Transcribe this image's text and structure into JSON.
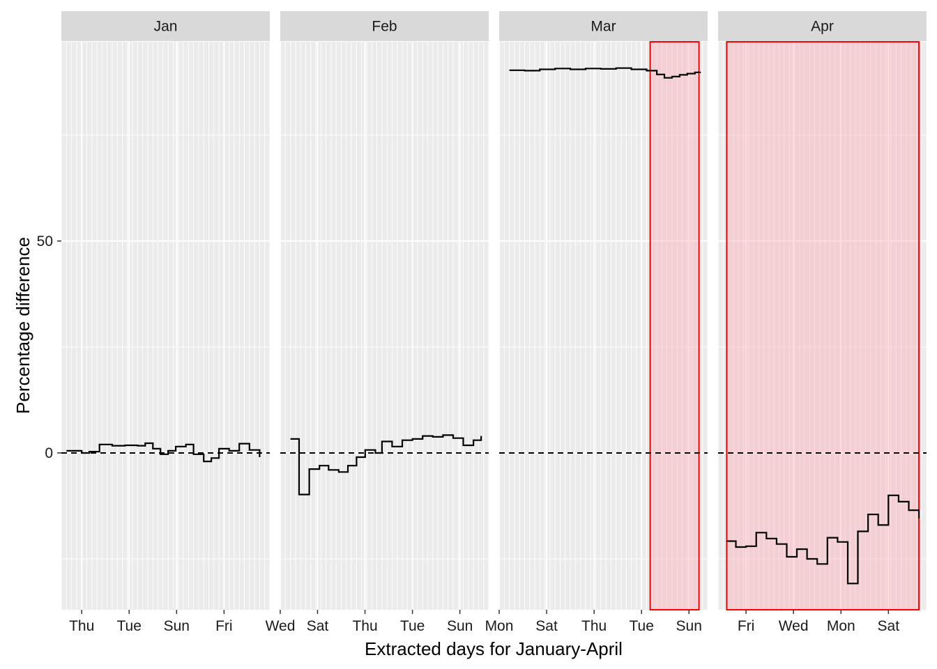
{
  "chart_data": {
    "type": "line",
    "step": true,
    "xlabel": "Extracted days for January-April",
    "ylabel": "Percentage difference",
    "ylim": [
      -37,
      97
    ],
    "y_major_ticks": [
      0,
      50
    ],
    "y_minor_ticks": [
      -25,
      25,
      75
    ],
    "reference_line": {
      "y": 0,
      "style": "dashed",
      "color": "#000000"
    },
    "grid": true,
    "panels": [
      {
        "name": "Jan",
        "x_domain": [
          0,
          41
        ],
        "x_ticks": [
          {
            "x": 4,
            "label": "Thu"
          },
          {
            "x": 13.33,
            "label": "Tue"
          },
          {
            "x": 22.67,
            "label": "Sun"
          },
          {
            "x": 32,
            "label": "Fri"
          }
        ],
        "highlight": null,
        "series": [
          {
            "x": 1,
            "y": 0.5
          },
          {
            "x": 3,
            "y": 0.5
          },
          {
            "x": 4,
            "y": 0
          },
          {
            "x": 5.5,
            "y": 0.3
          },
          {
            "x": 7.5,
            "y": 2
          },
          {
            "x": 10,
            "y": 1.7
          },
          {
            "x": 12.5,
            "y": 1.8
          },
          {
            "x": 15,
            "y": 1.7
          },
          {
            "x": 16.5,
            "y": 2.3
          },
          {
            "x": 18,
            "y": 1
          },
          {
            "x": 19.5,
            "y": -0.3
          },
          {
            "x": 21,
            "y": 0.5
          },
          {
            "x": 22.5,
            "y": 1.5
          },
          {
            "x": 24.5,
            "y": 2
          },
          {
            "x": 26,
            "y": -0.3
          },
          {
            "x": 28,
            "y": -2
          },
          {
            "x": 29.5,
            "y": -1.2
          },
          {
            "x": 31,
            "y": 1
          },
          {
            "x": 33,
            "y": 0.5
          },
          {
            "x": 35,
            "y": 2.2
          },
          {
            "x": 37,
            "y": 0.7
          },
          {
            "x": 39,
            "y": -1
          }
        ]
      },
      {
        "name": "Feb",
        "x_domain": [
          0,
          41
        ],
        "x_ticks": [
          {
            "x": 0,
            "label": "Wed"
          },
          {
            "x": 7.33,
            "label": "Sat"
          },
          {
            "x": 16.67,
            "label": "Thu"
          },
          {
            "x": 26,
            "label": "Tue"
          },
          {
            "x": 35.33,
            "label": "Sun"
          }
        ],
        "highlight": null,
        "series": [
          {
            "x": 2,
            "y": 3.3
          },
          {
            "x": 3.7,
            "y": -9.8
          },
          {
            "x": 5.7,
            "y": -3.8
          },
          {
            "x": 7.7,
            "y": -3
          },
          {
            "x": 9.5,
            "y": -4
          },
          {
            "x": 11.5,
            "y": -4.5
          },
          {
            "x": 13.3,
            "y": -3
          },
          {
            "x": 15,
            "y": -1
          },
          {
            "x": 16.7,
            "y": 0.7
          },
          {
            "x": 18.7,
            "y": 0
          },
          {
            "x": 20,
            "y": 2.7
          },
          {
            "x": 22,
            "y": 1.5
          },
          {
            "x": 24,
            "y": 3
          },
          {
            "x": 26,
            "y": 3.3
          },
          {
            "x": 28,
            "y": 4
          },
          {
            "x": 30,
            "y": 3.8
          },
          {
            "x": 32,
            "y": 4.2
          },
          {
            "x": 34,
            "y": 3.5
          },
          {
            "x": 36,
            "y": 1.8
          },
          {
            "x": 38,
            "y": 3
          },
          {
            "x": 39.5,
            "y": 4
          }
        ]
      },
      {
        "name": "Mar",
        "x_domain": [
          0,
          41
        ],
        "x_ticks": [
          {
            "x": 0,
            "label": "Mon"
          },
          {
            "x": 9.33,
            "label": "Sat"
          },
          {
            "x": 18.67,
            "label": "Thu"
          },
          {
            "x": 28,
            "label": "Tue"
          },
          {
            "x": 37.33,
            "label": "Sun"
          }
        ],
        "highlight": {
          "x0": 29.7,
          "x1": 39.3
        },
        "series": [
          {
            "x": 2,
            "y": 90.3
          },
          {
            "x": 5,
            "y": 90.2
          },
          {
            "x": 8,
            "y": 90.5
          },
          {
            "x": 11,
            "y": 90.7
          },
          {
            "x": 14,
            "y": 90.5
          },
          {
            "x": 17,
            "y": 90.7
          },
          {
            "x": 20,
            "y": 90.6
          },
          {
            "x": 23,
            "y": 90.8
          },
          {
            "x": 26,
            "y": 90.5
          },
          {
            "x": 29,
            "y": 90.2
          },
          {
            "x": 31,
            "y": 89.3
          },
          {
            "x": 32.5,
            "y": 88.5
          },
          {
            "x": 34,
            "y": 88.8
          },
          {
            "x": 35.5,
            "y": 89.2
          },
          {
            "x": 37,
            "y": 89.5
          },
          {
            "x": 38.5,
            "y": 89.8
          },
          {
            "x": 39.5,
            "y": 89.6
          }
        ]
      },
      {
        "name": "Apr",
        "x_domain": [
          0,
          41
        ],
        "x_ticks": [
          {
            "x": 5.5,
            "label": "Fri"
          },
          {
            "x": 14.83,
            "label": "Wed"
          },
          {
            "x": 24.17,
            "label": "Mon"
          },
          {
            "x": 33.5,
            "label": "Sat"
          }
        ],
        "highlight": {
          "x0": 1.7,
          "x1": 39.5
        },
        "series": [
          {
            "x": 1.7,
            "y": -20.8
          },
          {
            "x": 3.5,
            "y": -22.2
          },
          {
            "x": 5.5,
            "y": -22
          },
          {
            "x": 7.5,
            "y": -18.8
          },
          {
            "x": 9.5,
            "y": -20.2
          },
          {
            "x": 11.5,
            "y": -21.5
          },
          {
            "x": 13.5,
            "y": -24.5
          },
          {
            "x": 15.5,
            "y": -22.7
          },
          {
            "x": 17.5,
            "y": -25
          },
          {
            "x": 19.5,
            "y": -26.2
          },
          {
            "x": 21.5,
            "y": -20
          },
          {
            "x": 23.5,
            "y": -21
          },
          {
            "x": 25.5,
            "y": -30.8
          },
          {
            "x": 27.5,
            "y": -18.5
          },
          {
            "x": 29.5,
            "y": -14.5
          },
          {
            "x": 31.5,
            "y": -17
          },
          {
            "x": 33.5,
            "y": -10
          },
          {
            "x": 35.5,
            "y": -11.5
          },
          {
            "x": 37.5,
            "y": -13.5
          },
          {
            "x": 39.5,
            "y": -15.5
          }
        ]
      }
    ],
    "colors": {
      "panel_background": "#ebebeb",
      "grid_line": "#ffffff",
      "strip_background": "#d9d9d9",
      "series_line": "#000000",
      "highlight_fill": "#ff9aa5",
      "highlight_border": "#ff0000"
    }
  }
}
